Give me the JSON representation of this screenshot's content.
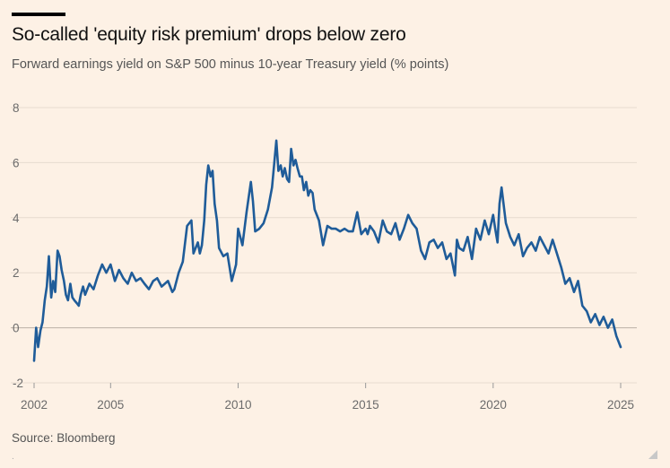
{
  "header": {
    "title": "So-called 'equity risk premium' drops below zero",
    "subtitle": "Forward earnings yield on S&P 500 minus 10-year Treasury yield (% points)"
  },
  "footer": {
    "source": "Source: Bloomberg",
    "dot": "."
  },
  "colors": {
    "background": "#fdf1e5",
    "line": "#1f5c99",
    "grid": "#e6dbcf",
    "zero_line": "#bcb1a6"
  },
  "chart_data": {
    "type": "line",
    "title": "So-called 'equity risk premium' drops below zero",
    "subtitle": "Forward earnings yield on S&P 500 minus 10-year Treasury yield (% points)",
    "xlabel": "",
    "ylabel": "",
    "xlim": [
      2002,
      2025
    ],
    "ylim": [
      -2,
      8
    ],
    "y_ticks": [
      8,
      6,
      4,
      2,
      0,
      -2
    ],
    "x_ticks": [
      2002,
      2005,
      2010,
      2015,
      2020,
      2025
    ],
    "grid": true,
    "series": [
      {
        "name": "Equity risk premium",
        "x": [
          2002.0,
          2002.08,
          2002.16,
          2002.25,
          2002.33,
          2002.42,
          2002.5,
          2002.58,
          2002.67,
          2002.75,
          2002.83,
          2002.92,
          2003.0,
          2003.08,
          2003.17,
          2003.25,
          2003.33,
          2003.42,
          2003.5,
          2003.58,
          2003.67,
          2003.75,
          2003.83,
          2003.92,
          2004.0,
          2004.17,
          2004.33,
          2004.5,
          2004.67,
          2004.83,
          2005.0,
          2005.17,
          2005.33,
          2005.5,
          2005.67,
          2005.83,
          2006.0,
          2006.17,
          2006.33,
          2006.5,
          2006.67,
          2006.83,
          2007.0,
          2007.25,
          2007.42,
          2007.5,
          2007.67,
          2007.83,
          2008.0,
          2008.17,
          2008.25,
          2008.42,
          2008.5,
          2008.58,
          2008.67,
          2008.75,
          2008.83,
          2008.92,
          2009.0,
          2009.08,
          2009.17,
          2009.25,
          2009.42,
          2009.58,
          2009.75,
          2009.92,
          2010.0,
          2010.17,
          2010.33,
          2010.5,
          2010.58,
          2010.67,
          2010.83,
          2011.0,
          2011.17,
          2011.33,
          2011.5,
          2011.58,
          2011.67,
          2011.75,
          2011.83,
          2011.92,
          2012.0,
          2012.08,
          2012.17,
          2012.25,
          2012.33,
          2012.42,
          2012.5,
          2012.58,
          2012.67,
          2012.75,
          2012.83,
          2012.92,
          2013.0,
          2013.17,
          2013.33,
          2013.5,
          2013.67,
          2013.83,
          2014.0,
          2014.17,
          2014.33,
          2014.5,
          2014.67,
          2014.83,
          2015.0,
          2015.08,
          2015.17,
          2015.33,
          2015.5,
          2015.67,
          2015.83,
          2016.0,
          2016.17,
          2016.33,
          2016.5,
          2016.67,
          2016.83,
          2017.0,
          2017.17,
          2017.33,
          2017.5,
          2017.67,
          2017.83,
          2018.0,
          2018.17,
          2018.33,
          2018.5,
          2018.58,
          2018.67,
          2018.83,
          2019.0,
          2019.17,
          2019.33,
          2019.5,
          2019.67,
          2019.83,
          2020.0,
          2020.08,
          2020.17,
          2020.25,
          2020.33,
          2020.5,
          2020.67,
          2020.83,
          2021.0,
          2021.17,
          2021.33,
          2021.5,
          2021.67,
          2021.83,
          2022.0,
          2022.17,
          2022.33,
          2022.5,
          2022.67,
          2022.83,
          2023.0,
          2023.17,
          2023.33,
          2023.5,
          2023.67,
          2023.83,
          2024.0,
          2024.17,
          2024.33,
          2024.5,
          2024.67,
          2024.83,
          2025.0
        ],
        "values": [
          -1.2,
          0.0,
          -0.7,
          -0.1,
          0.2,
          1.0,
          1.5,
          2.6,
          1.1,
          1.7,
          1.3,
          2.8,
          2.6,
          2.1,
          1.7,
          1.2,
          1.0,
          1.6,
          1.1,
          1.0,
          0.9,
          0.8,
          1.2,
          1.5,
          1.2,
          1.6,
          1.4,
          1.9,
          2.3,
          2.0,
          2.3,
          1.7,
          2.1,
          1.8,
          1.6,
          2.0,
          1.7,
          1.8,
          1.6,
          1.4,
          1.7,
          1.8,
          1.5,
          1.7,
          1.3,
          1.4,
          2.0,
          2.4,
          3.7,
          3.9,
          2.7,
          3.1,
          2.7,
          3.0,
          3.9,
          5.2,
          5.9,
          5.5,
          5.7,
          4.5,
          3.9,
          2.9,
          2.6,
          2.7,
          1.7,
          2.3,
          3.6,
          3.0,
          4.2,
          5.3,
          4.6,
          3.5,
          3.6,
          3.8,
          4.3,
          5.1,
          6.8,
          5.7,
          5.9,
          5.5,
          5.8,
          5.4,
          5.3,
          6.5,
          5.9,
          6.1,
          5.8,
          5.5,
          5.5,
          5.0,
          5.3,
          4.8,
          5.0,
          4.9,
          4.3,
          3.9,
          3.0,
          3.7,
          3.6,
          3.6,
          3.5,
          3.6,
          3.5,
          3.5,
          4.2,
          3.4,
          3.6,
          3.4,
          3.7,
          3.5,
          3.1,
          3.9,
          3.5,
          3.4,
          3.8,
          3.2,
          3.6,
          4.1,
          3.8,
          3.6,
          2.8,
          2.5,
          3.1,
          3.2,
          2.9,
          3.1,
          2.5,
          2.7,
          1.9,
          3.2,
          2.9,
          2.8,
          3.3,
          2.5,
          3.6,
          3.2,
          3.9,
          3.4,
          4.1,
          3.6,
          3.1,
          4.5,
          5.1,
          3.8,
          3.3,
          3.0,
          3.4,
          2.6,
          2.9,
          3.1,
          2.8,
          3.3,
          3.0,
          2.7,
          3.2,
          2.7,
          2.2,
          1.6,
          1.8,
          1.3,
          1.7,
          0.8,
          0.6,
          0.2,
          0.5,
          0.1,
          0.4,
          0.0,
          0.3,
          -0.3,
          -0.7
        ]
      }
    ]
  }
}
